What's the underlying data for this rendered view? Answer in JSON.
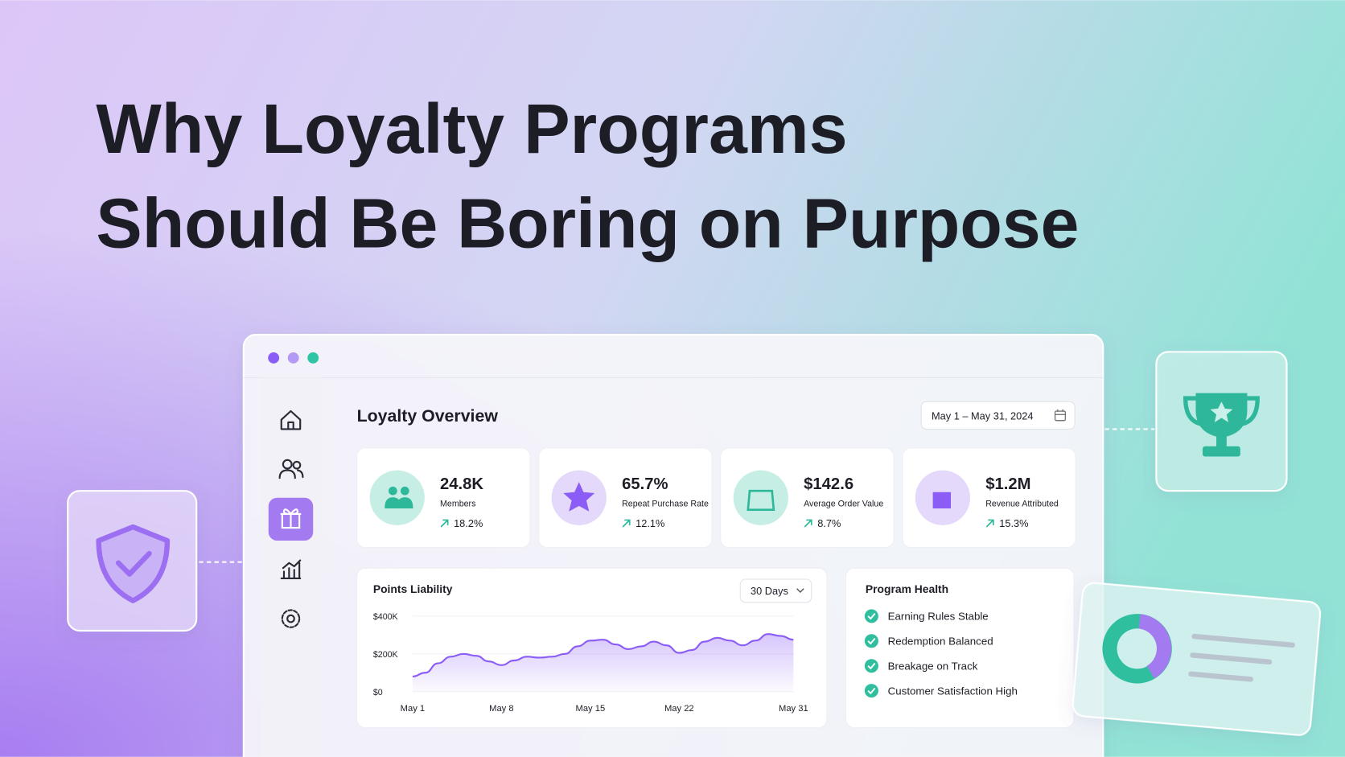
{
  "headline": [
    "Why Loyalty Programs",
    "Should Be Boring on Purpose"
  ],
  "dashboard": {
    "title": "Loyalty Overview",
    "date_range": "May 1 – May 31, 2024",
    "kpis": [
      {
        "value": "24.8K",
        "label": "Members",
        "change": "18.2%"
      },
      {
        "value": "65.7%",
        "label": "Repeat Purchase Rate",
        "change": "12.1%"
      },
      {
        "value": "$142.6",
        "label": "Average Order Value",
        "change": "8.7%"
      },
      {
        "value": "$1.2M",
        "label": "Revenue Attributed",
        "change": "15.3%"
      }
    ],
    "range_select": "30 Days",
    "health": {
      "title": "Program Health",
      "items": [
        "Earning Rules Stable",
        "Redemption Balanced",
        "Breakage on Track",
        "Customer Satisfaction High"
      ]
    }
  },
  "chart_data": {
    "type": "area",
    "title": "Points Liability",
    "color": "#8b5cf6",
    "x": [
      1,
      2,
      3,
      4,
      5,
      6,
      7,
      8,
      9,
      10,
      11,
      12,
      13,
      14,
      15,
      16,
      17,
      18,
      19,
      20,
      21,
      22,
      23,
      24,
      25,
      26,
      27,
      28,
      29,
      30,
      31
    ],
    "values": [
      80000,
      100000,
      150000,
      185000,
      200000,
      190000,
      160000,
      140000,
      165000,
      185000,
      180000,
      185000,
      200000,
      240000,
      270000,
      275000,
      250000,
      225000,
      240000,
      265000,
      245000,
      205000,
      220000,
      265000,
      285000,
      270000,
      245000,
      270000,
      305000,
      295000,
      275000
    ],
    "xlim": [
      1,
      31
    ],
    "xticks": [
      {
        "value": 1,
        "label": "May 1"
      },
      {
        "value": 8,
        "label": "May 8"
      },
      {
        "value": 15,
        "label": "May 15"
      },
      {
        "value": 22,
        "label": "May 22"
      },
      {
        "value": 31,
        "label": "May 31"
      }
    ],
    "ylim": [
      0,
      400000
    ],
    "yticks": [
      {
        "value": 0,
        "label": "$0"
      },
      {
        "value": 200000,
        "label": "$200K"
      },
      {
        "value": 400000,
        "label": "$400K"
      }
    ],
    "grid": true
  }
}
